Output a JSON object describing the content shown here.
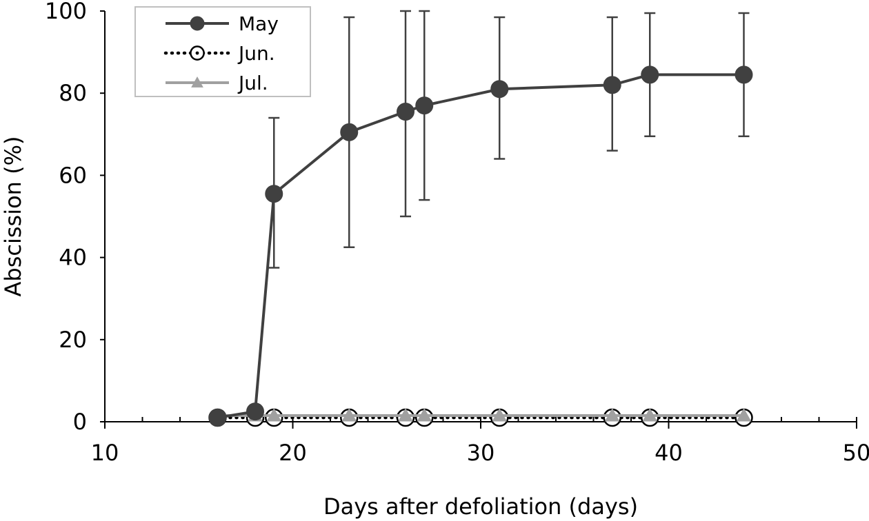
{
  "chart_data": {
    "type": "line",
    "title": "",
    "xlabel": "Days after defoliation (days)",
    "ylabel": "Abscission (%)",
    "xlim": [
      10,
      50
    ],
    "ylim": [
      0,
      100
    ],
    "xticks": [
      10,
      20,
      30,
      40,
      50
    ],
    "yticks": [
      0,
      20,
      40,
      60,
      80,
      100
    ],
    "x_minor_step": 2,
    "grid": false,
    "legend_position": "top-left",
    "x": [
      16,
      18,
      19,
      23,
      26,
      27,
      31,
      37,
      39,
      44
    ],
    "series": [
      {
        "name": "May",
        "color": "#404040",
        "line": "solid",
        "marker": "filled-circle",
        "values": [
          1,
          2.5,
          55.5,
          70.5,
          75.5,
          77,
          81,
          82,
          84.5,
          84.5
        ],
        "error_low": [
          null,
          null,
          37.5,
          42.5,
          50,
          54,
          64,
          66,
          69.5,
          69.5
        ],
        "error_high": [
          null,
          null,
          74,
          98.5,
          100,
          100,
          98.5,
          98.5,
          99.5,
          99.5
        ]
      },
      {
        "name": "Jun.",
        "color": "#000000",
        "line": "dotted",
        "marker": "open-circle",
        "values": [
          1,
          1,
          1,
          1,
          1,
          1,
          1,
          1,
          1,
          1
        ]
      },
      {
        "name": "Jul.",
        "color": "#a0a0a0",
        "line": "solid",
        "marker": "triangle",
        "values": [
          1.5,
          1.5,
          1.5,
          1.5,
          1.5,
          1.5,
          1.5,
          1.5,
          1.5,
          1.5
        ]
      }
    ]
  }
}
